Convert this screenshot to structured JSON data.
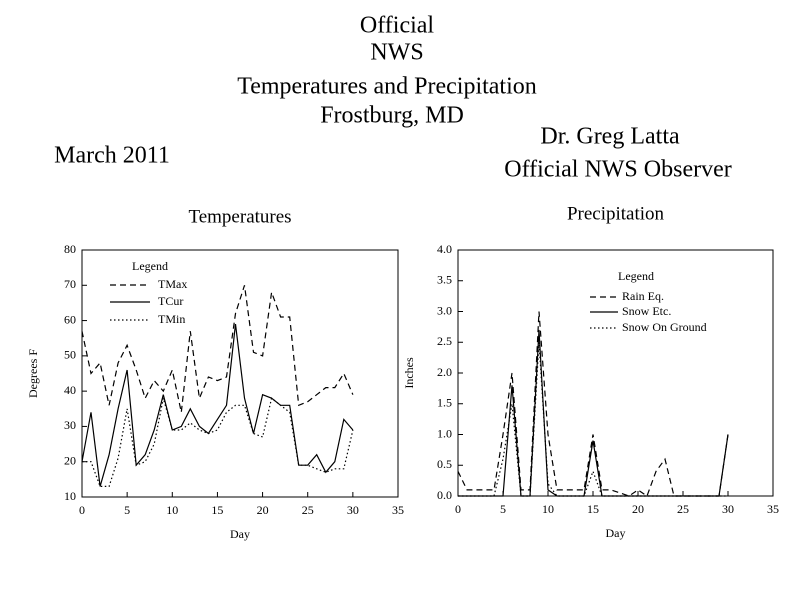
{
  "header": {
    "title_lines": [
      "Official",
      "NWS",
      "Temperatures and Precipitation",
      "Frostburg, MD"
    ],
    "period": "March 2011",
    "observer_lines": [
      "Dr. Greg Latta",
      "Official NWS Observer"
    ]
  },
  "chart_data": [
    {
      "type": "line",
      "title": "Temperatures",
      "x_label": "Day",
      "y_label": "Degrees F",
      "legend_title": "Legend",
      "x": [
        0,
        1,
        2,
        3,
        4,
        5,
        6,
        7,
        8,
        9,
        10,
        11,
        12,
        13,
        14,
        15,
        16,
        17,
        18,
        19,
        20,
        21,
        22,
        23,
        24,
        25,
        26,
        27,
        28,
        29,
        30
      ],
      "series": [
        {
          "name": "TMax",
          "color": "#000000",
          "dash": "dashed",
          "values": [
            57,
            45,
            48,
            36,
            48,
            53,
            46,
            38,
            43,
            40,
            46,
            34,
            57,
            38,
            44,
            43,
            44,
            62,
            70,
            51,
            50,
            68,
            61,
            61,
            36,
            37,
            39,
            41,
            41,
            45,
            39
          ]
        },
        {
          "name": "TCur",
          "color": "#000000",
          "dash": "solid",
          "values": [
            20,
            34,
            13,
            22,
            35,
            46,
            19,
            22,
            29,
            39,
            29,
            30,
            35,
            30,
            28,
            32,
            36,
            59,
            38,
            28,
            39,
            38,
            36,
            36,
            19,
            19,
            22,
            17,
            20,
            32,
            29
          ]
        },
        {
          "name": "TMin",
          "color": "#000000",
          "dash": "dotted",
          "values": [
            20,
            20,
            13,
            13,
            21,
            35,
            19,
            20,
            25,
            38,
            29,
            29,
            31,
            29,
            28,
            29,
            34,
            36,
            36,
            28,
            27,
            38,
            36,
            34,
            19,
            19,
            18,
            17,
            18,
            18,
            29
          ]
        }
      ],
      "xlim": [
        0,
        35
      ],
      "xticks": [
        0,
        5,
        10,
        15,
        20,
        25,
        30,
        35
      ],
      "ylim": [
        10,
        80
      ],
      "yticks": [
        10,
        20,
        30,
        40,
        50,
        60,
        70,
        80
      ]
    },
    {
      "type": "line",
      "title": "Precipitation",
      "x_label": "Day",
      "y_label": "Inches",
      "legend_title": "Legend",
      "x": [
        0,
        1,
        2,
        3,
        4,
        5,
        6,
        7,
        8,
        9,
        10,
        11,
        12,
        13,
        14,
        15,
        16,
        17,
        18,
        19,
        20,
        21,
        22,
        23,
        24,
        25,
        26,
        27,
        28,
        29,
        30
      ],
      "series": [
        {
          "name": "Rain Eq.",
          "color": "#000000",
          "dash": "dashed",
          "values": [
            0.4,
            0.1,
            0.1,
            0.1,
            0.1,
            1.0,
            2.0,
            0.1,
            0.1,
            3.0,
            1.0,
            0.1,
            0.1,
            0.1,
            0.1,
            1.0,
            0.1,
            0.1,
            0.05,
            0,
            0.1,
            0,
            0.4,
            0.6,
            0,
            0,
            0,
            0,
            0,
            0,
            1.0
          ]
        },
        {
          "name": "Snow Etc.",
          "color": "#000000",
          "dash": "solid",
          "values": [
            0,
            0,
            0,
            0,
            0,
            0,
            1.8,
            0,
            0,
            2.7,
            0.1,
            0,
            0,
            0,
            0,
            0.9,
            0,
            0,
            0,
            0,
            0,
            0,
            0,
            0,
            0,
            0,
            0,
            0,
            0,
            0,
            1.0
          ]
        },
        {
          "name": "Snow On Ground",
          "color": "#000000",
          "dash": "dotted",
          "values": [
            0,
            0,
            0,
            0,
            0,
            0.6,
            1.5,
            0,
            0,
            2.5,
            0.2,
            0,
            0,
            0,
            0,
            0.4,
            0,
            0,
            0,
            0,
            0,
            0,
            0,
            0,
            0,
            0,
            0,
            0,
            0,
            0,
            0
          ]
        }
      ],
      "xlim": [
        0,
        35
      ],
      "xticks": [
        0,
        5,
        10,
        15,
        20,
        25,
        30,
        35
      ],
      "ylim": [
        0,
        4
      ],
      "yticks": [
        {
          "value": 0,
          "label": "0.0"
        },
        0.5,
        {
          "value": 1,
          "label": "1.0"
        },
        1.5,
        {
          "value": 2,
          "label": "2.0"
        },
        2.5,
        {
          "value": 3,
          "label": "3.0"
        },
        3.5,
        {
          "value": 4,
          "label": "4.0"
        }
      ]
    }
  ]
}
